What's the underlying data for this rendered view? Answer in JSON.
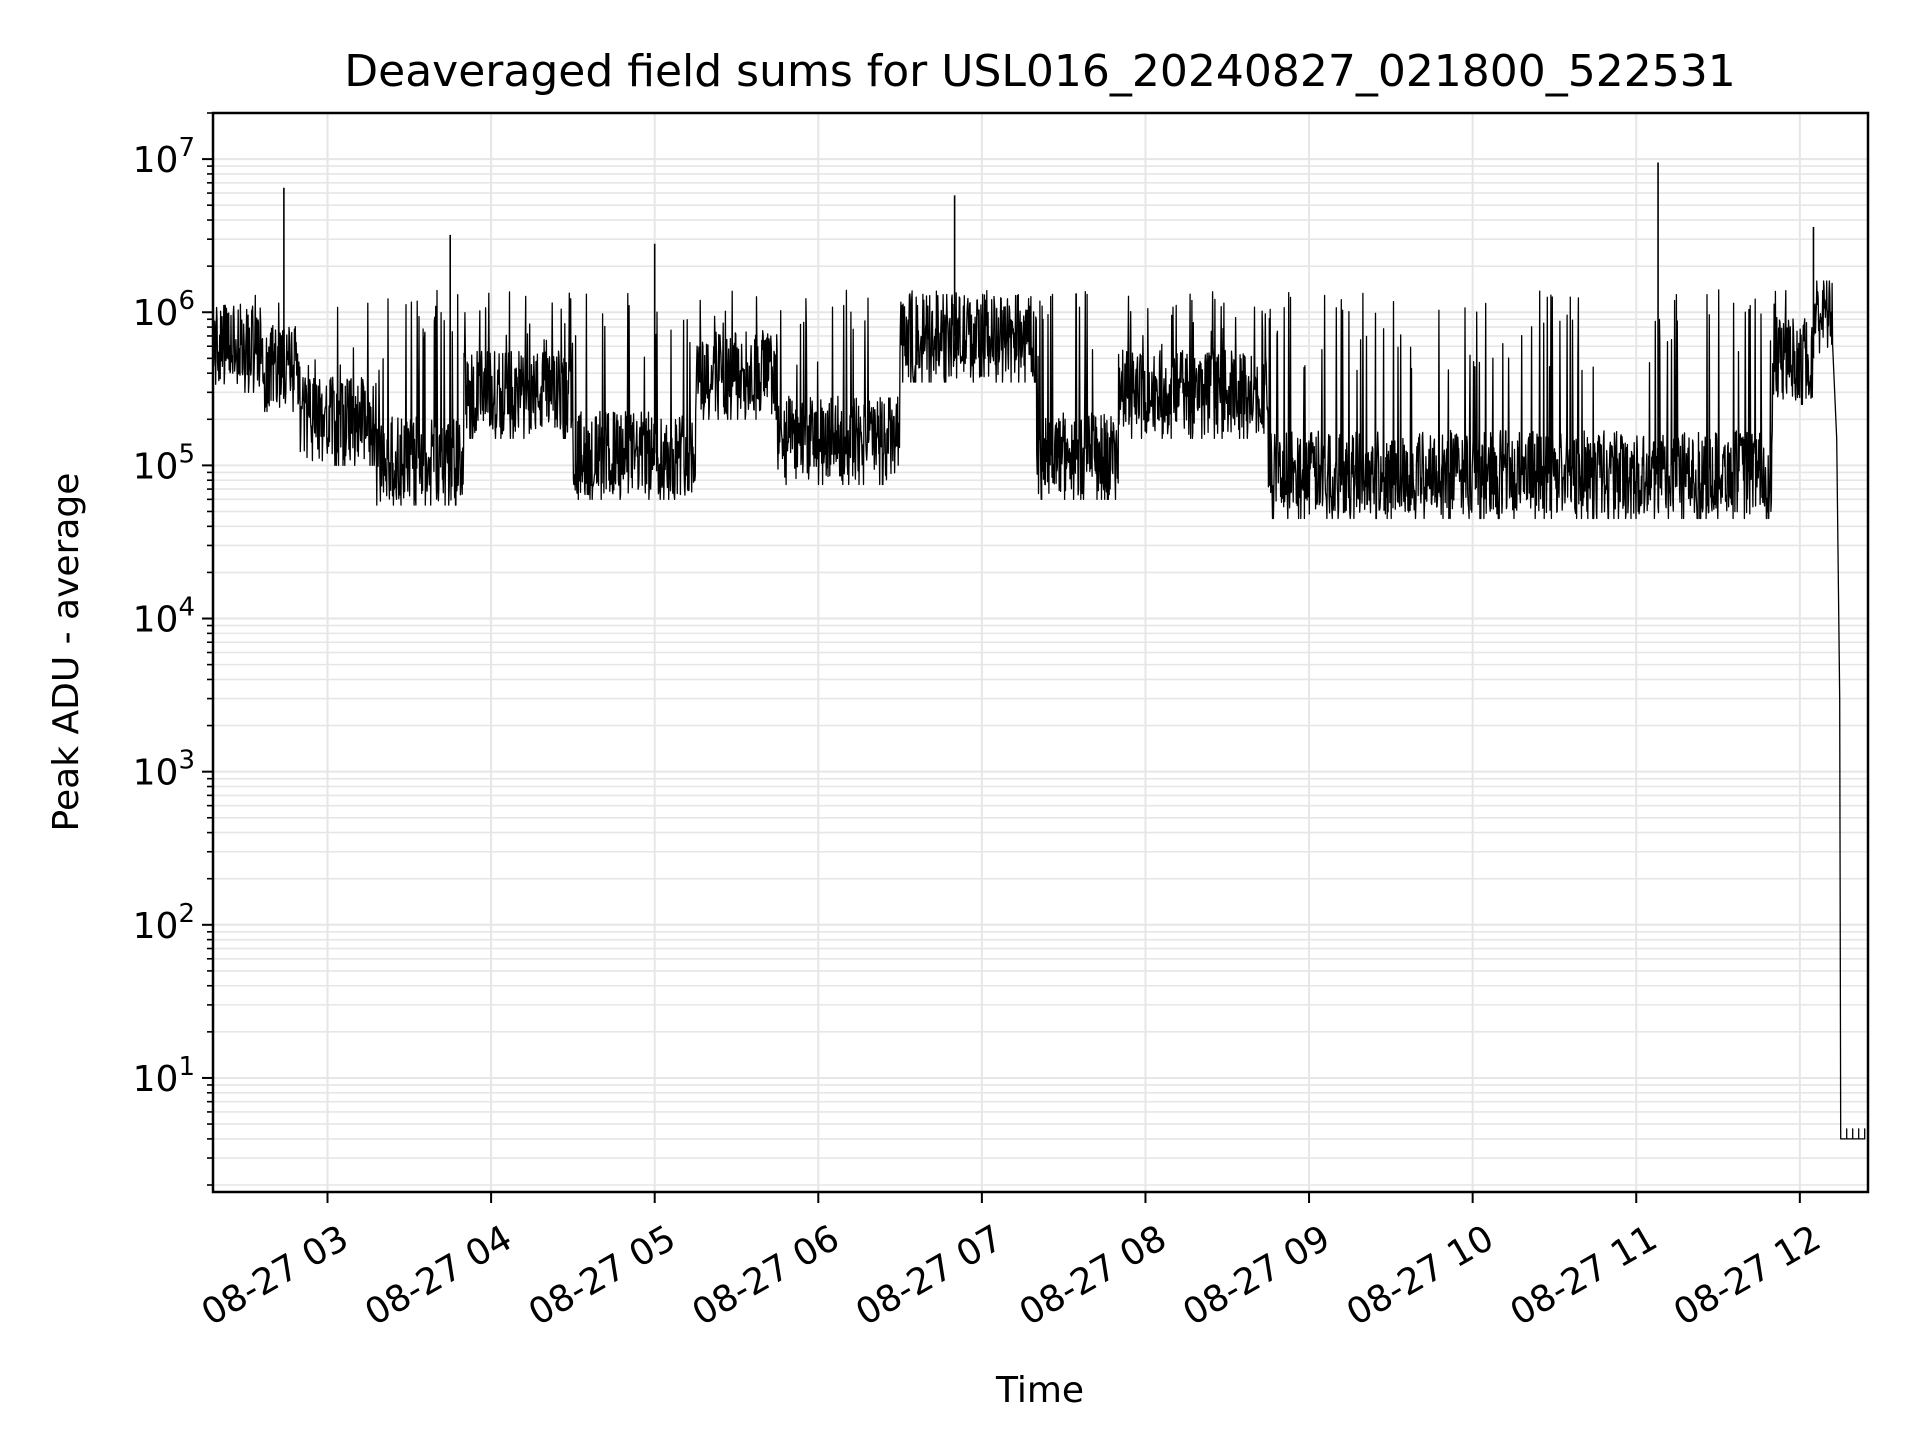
{
  "chart_data": {
    "type": "line",
    "title": "Deaveraged field sums for USL016_20240827_021800_522531",
    "xlabel": "Time",
    "ylabel": "Peak ADU - average",
    "y_scale": "log",
    "ylim": [
      1.8,
      20000000
    ],
    "xlim": [
      "2024-08-27 02:18",
      "2024-08-27 12:25"
    ],
    "grid": true,
    "line_color": "#000000",
    "grid_color": "#e6e6e6",
    "x_ticks": [
      {
        "value": "2024-08-27 03:00",
        "label": "08-27 03"
      },
      {
        "value": "2024-08-27 04:00",
        "label": "08-27 04"
      },
      {
        "value": "2024-08-27 05:00",
        "label": "08-27 05"
      },
      {
        "value": "2024-08-27 06:00",
        "label": "08-27 06"
      },
      {
        "value": "2024-08-27 07:00",
        "label": "08-27 07"
      },
      {
        "value": "2024-08-27 08:00",
        "label": "08-27 08"
      },
      {
        "value": "2024-08-27 09:00",
        "label": "08-27 09"
      },
      {
        "value": "2024-08-27 10:00",
        "label": "08-27 10"
      },
      {
        "value": "2024-08-27 11:00",
        "label": "08-27 11"
      },
      {
        "value": "2024-08-27 12:00",
        "label": "08-27 12"
      }
    ],
    "y_ticks": [
      {
        "value": 10,
        "base": "10",
        "exp": "1"
      },
      {
        "value": 100,
        "base": "10",
        "exp": "2"
      },
      {
        "value": 1000,
        "base": "10",
        "exp": "3"
      },
      {
        "value": 10000,
        "base": "10",
        "exp": "4"
      },
      {
        "value": 100000,
        "base": "10",
        "exp": "5"
      },
      {
        "value": 1000000,
        "base": "10",
        "exp": "6"
      },
      {
        "value": 10000000,
        "base": "10",
        "exp": "7"
      }
    ],
    "series": [
      {
        "baseline_segments": [
          {
            "start": "2024-08-27 02:18",
            "end": "2024-08-27 02:36",
            "level": 600000
          },
          {
            "start": "2024-08-27 02:36",
            "end": "2024-08-27 02:50",
            "level": 450000
          },
          {
            "start": "2024-08-27 02:50",
            "end": "2024-08-27 03:18",
            "level": 200000
          },
          {
            "start": "2024-08-27 03:18",
            "end": "2024-08-27 03:50",
            "level": 110000
          },
          {
            "start": "2024-08-27 03:50",
            "end": "2024-08-27 04:30",
            "level": 300000
          },
          {
            "start": "2024-08-27 04:30",
            "end": "2024-08-27 05:15",
            "level": 120000
          },
          {
            "start": "2024-08-27 05:15",
            "end": "2024-08-27 05:45",
            "level": 400000
          },
          {
            "start": "2024-08-27 05:45",
            "end": "2024-08-27 06:30",
            "level": 150000
          },
          {
            "start": "2024-08-27 06:30",
            "end": "2024-08-27 07:20",
            "level": 700000
          },
          {
            "start": "2024-08-27 07:20",
            "end": "2024-08-27 07:50",
            "level": 120000
          },
          {
            "start": "2024-08-27 07:50",
            "end": "2024-08-27 08:45",
            "level": 300000
          },
          {
            "start": "2024-08-27 08:45",
            "end": "2024-08-27 11:50",
            "level": 90000
          },
          {
            "start": "2024-08-27 11:50",
            "end": "2024-08-27 12:05",
            "level": 500000
          },
          {
            "start": "2024-08-27 12:05",
            "end": "2024-08-27 12:12",
            "level": 1000000
          }
        ],
        "spikes": [
          {
            "time": "2024-08-27 02:44",
            "value": 6500000
          },
          {
            "time": "2024-08-27 03:45",
            "value": 3200000
          },
          {
            "time": "2024-08-27 05:00",
            "value": 2800000
          },
          {
            "time": "2024-08-27 06:50",
            "value": 5800000
          },
          {
            "time": "2024-08-27 11:08",
            "value": 9500000
          },
          {
            "time": "2024-08-27 12:05",
            "value": 3600000
          }
        ],
        "dropoff": {
          "time": "2024-08-27 12:15",
          "value": 4
        }
      }
    ]
  }
}
